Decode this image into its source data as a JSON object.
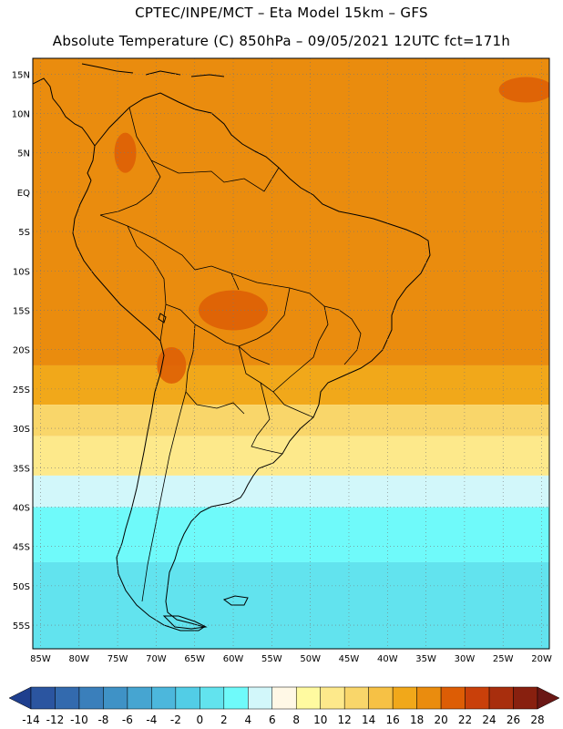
{
  "header": {
    "line1": "CPTEC/INPE/MCT –  Eta Model 15km – GFS",
    "line2": "Absolute Temperature (C) 850hPa – 09/05/2021 12UTC fct=171h"
  },
  "map": {
    "lon_labels": [
      "85W",
      "80W",
      "75W",
      "70W",
      "65W",
      "60W",
      "55W",
      "50W",
      "45W",
      "40W",
      "35W",
      "30W",
      "25W",
      "20W"
    ],
    "lat_labels": [
      "15N",
      "10N",
      "5N",
      "EQ",
      "5S",
      "10S",
      "15S",
      "20S",
      "25S",
      "30S",
      "35S",
      "40S",
      "45S",
      "50S",
      "55S"
    ],
    "lon_range": [
      -86,
      -19
    ],
    "lat_range": [
      17,
      -58
    ],
    "grid": true,
    "temperature_bands": [
      {
        "lat_from": 17,
        "lat_to": -22,
        "temp_c": 18
      },
      {
        "lat_from": -22,
        "lat_to": -27,
        "temp_c": 16
      },
      {
        "lat_from": -27,
        "lat_to": -31,
        "temp_c": 12
      },
      {
        "lat_from": -31,
        "lat_to": -36,
        "temp_c": 10
      },
      {
        "lat_from": -36,
        "lat_to": -40,
        "temp_c": 4
      },
      {
        "lat_from": -40,
        "lat_to": -47,
        "temp_c": 2
      },
      {
        "lat_from": -47,
        "lat_to": -58,
        "temp_c": 0
      }
    ],
    "warm_spot_temp_c": 20
  },
  "colorbar": {
    "labels": [
      "-14",
      "-12",
      "-10",
      "-8",
      "-6",
      "-4",
      "-2",
      "0",
      "2",
      "4",
      "6",
      "8",
      "10",
      "12",
      "14",
      "16",
      "18",
      "20",
      "22",
      "24",
      "26",
      "28"
    ],
    "colors": [
      "#1f3f8e",
      "#2b55a0",
      "#336aae",
      "#3a7fbb",
      "#3f92c6",
      "#46a5d1",
      "#4cb7dc",
      "#52cde6",
      "#62e3ee",
      "#6ffafa",
      "#d2f7fa",
      "#fff8e6",
      "#fffaa0",
      "#fde98b",
      "#f9d66a",
      "#f6c145",
      "#f1a81a",
      "#ea8c0e",
      "#dd5d05",
      "#c9400a",
      "#a82e0d",
      "#88200f",
      "#6a1715"
    ]
  }
}
